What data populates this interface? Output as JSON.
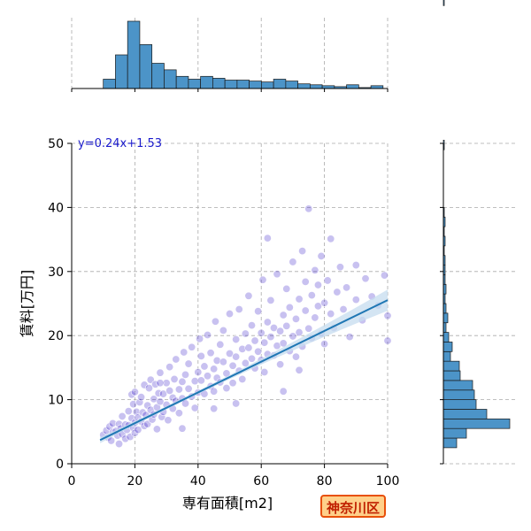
{
  "chart_data": {
    "type": "scatter",
    "xlabel": "専有面積[m2]",
    "ylabel": "賃料[万円]",
    "xlim": [
      0,
      100
    ],
    "ylim": [
      0,
      50
    ],
    "xticks": [
      "0",
      "20",
      "40",
      "60",
      "80",
      "100"
    ],
    "yticks": [
      "0",
      "10",
      "20",
      "30",
      "40",
      "50"
    ],
    "grid": true,
    "regression": {
      "label": "y=0.24x+1.53",
      "slope": 0.24,
      "intercept": 1.53,
      "x_range": [
        9,
        100
      ],
      "line_color": "#1f77b4",
      "band_color": "#c6dcef"
    },
    "point_color": "#3b1fc9",
    "bar_color": "#4c94c8",
    "points": [
      [
        10,
        4.5
      ],
      [
        11,
        5.2
      ],
      [
        11.5,
        4.1
      ],
      [
        12,
        5.8
      ],
      [
        12.5,
        3.6
      ],
      [
        13,
        4.9
      ],
      [
        13,
        6.3
      ],
      [
        14,
        5.1
      ],
      [
        14.5,
        4.4
      ],
      [
        15,
        6.2
      ],
      [
        15,
        3.1
      ],
      [
        15.5,
        5.5
      ],
      [
        16,
        7.4
      ],
      [
        16,
        4.6
      ],
      [
        17,
        6.1
      ],
      [
        17,
        3.9
      ],
      [
        17.5,
        5.3
      ],
      [
        18,
        8.2
      ],
      [
        18,
        6.0
      ],
      [
        18.5,
        4.2
      ],
      [
        19,
        10.8
      ],
      [
        19,
        7.1
      ],
      [
        19.5,
        5.6
      ],
      [
        19.5,
        9.3
      ],
      [
        20,
        6.4
      ],
      [
        20,
        11.2
      ],
      [
        20,
        4.8
      ],
      [
        20.5,
        8.1
      ],
      [
        21,
        7.2
      ],
      [
        21,
        5.3
      ],
      [
        21.5,
        9.6
      ],
      [
        22,
        6.6
      ],
      [
        22,
        10.4
      ],
      [
        22.5,
        8.0
      ],
      [
        23,
        12.3
      ],
      [
        23,
        5.9
      ],
      [
        23.5,
        7.6
      ],
      [
        24,
        9.1
      ],
      [
        24,
        6.2
      ],
      [
        24.5,
        11.8
      ],
      [
        25,
        8.4
      ],
      [
        25,
        13.1
      ],
      [
        25.5,
        6.9
      ],
      [
        26,
        10.1
      ],
      [
        26,
        7.7
      ],
      [
        26.5,
        12.4
      ],
      [
        27,
        8.8
      ],
      [
        27,
        5.4
      ],
      [
        27.5,
        11.0
      ],
      [
        28,
        9.7
      ],
      [
        28,
        14.2
      ],
      [
        28.5,
        7.3
      ],
      [
        29,
        10.9
      ],
      [
        29,
        8.1
      ],
      [
        30,
        12.6
      ],
      [
        30,
        9.2
      ],
      [
        30.5,
        6.8
      ],
      [
        31,
        11.4
      ],
      [
        31,
        15.1
      ],
      [
        32,
        10.3
      ],
      [
        32,
        8.6
      ],
      [
        32.5,
        13.2
      ],
      [
        33,
        9.8
      ],
      [
        33,
        16.3
      ],
      [
        34,
        11.6
      ],
      [
        34,
        7.9
      ],
      [
        35,
        12.8
      ],
      [
        35,
        10.2
      ],
      [
        35.5,
        17.4
      ],
      [
        36,
        9.4
      ],
      [
        36,
        13.9
      ],
      [
        37,
        11.7
      ],
      [
        37,
        15.6
      ],
      [
        38,
        10.5
      ],
      [
        38,
        18.2
      ],
      [
        39,
        12.9
      ],
      [
        39,
        8.7
      ],
      [
        40,
        14.3
      ],
      [
        40,
        11.1
      ],
      [
        40.5,
        19.5
      ],
      [
        41,
        13.0
      ],
      [
        41,
        16.8
      ],
      [
        42,
        10.9
      ],
      [
        42,
        15.2
      ],
      [
        43,
        13.7
      ],
      [
        43,
        20.1
      ],
      [
        44,
        12.1
      ],
      [
        44,
        17.3
      ],
      [
        45,
        14.8
      ],
      [
        45,
        11.3
      ],
      [
        45.5,
        22.2
      ],
      [
        46,
        16.1
      ],
      [
        46,
        13.4
      ],
      [
        47,
        18.6
      ],
      [
        47,
        12.7
      ],
      [
        48,
        15.9
      ],
      [
        48,
        20.8
      ],
      [
        49,
        14.1
      ],
      [
        49,
        11.8
      ],
      [
        50,
        17.2
      ],
      [
        50,
        23.4
      ],
      [
        51,
        15.3
      ],
      [
        51,
        12.6
      ],
      [
        52,
        19.4
      ],
      [
        52,
        16.7
      ],
      [
        53,
        14.5
      ],
      [
        53,
        24.1
      ],
      [
        54,
        17.9
      ],
      [
        54,
        13.2
      ],
      [
        55,
        20.3
      ],
      [
        55,
        15.7
      ],
      [
        56,
        18.1
      ],
      [
        56,
        26.2
      ],
      [
        57,
        16.4
      ],
      [
        57,
        21.6
      ],
      [
        58,
        14.9
      ],
      [
        58,
        19.2
      ],
      [
        59,
        17.5
      ],
      [
        59,
        23.8
      ],
      [
        60,
        16.2
      ],
      [
        60,
        20.4
      ],
      [
        60.5,
        28.7
      ],
      [
        61,
        18.9
      ],
      [
        61,
        14.3
      ],
      [
        62,
        22.1
      ],
      [
        62,
        17.1
      ],
      [
        63,
        19.8
      ],
      [
        63,
        25.5
      ],
      [
        64,
        16.9
      ],
      [
        64,
        21.2
      ],
      [
        65,
        18.4
      ],
      [
        65,
        29.6
      ],
      [
        66,
        20.7
      ],
      [
        66,
        15.5
      ],
      [
        67,
        23.2
      ],
      [
        67,
        18.8
      ],
      [
        68,
        21.5
      ],
      [
        68,
        27.3
      ],
      [
        69,
        17.6
      ],
      [
        69,
        24.4
      ],
      [
        70,
        19.9
      ],
      [
        70,
        31.5
      ],
      [
        71,
        22.6
      ],
      [
        71,
        16.7
      ],
      [
        72,
        25.7
      ],
      [
        72,
        20.5
      ],
      [
        73,
        18.3
      ],
      [
        73,
        33.2
      ],
      [
        74,
        23.9
      ],
      [
        74,
        28.4
      ],
      [
        75,
        21.1
      ],
      [
        75,
        39.8
      ],
      [
        76,
        26.3
      ],
      [
        76,
        19.6
      ],
      [
        77,
        30.2
      ],
      [
        77,
        22.8
      ],
      [
        78,
        24.6
      ],
      [
        78,
        27.9
      ],
      [
        79,
        20.3
      ],
      [
        79,
        32.4
      ],
      [
        80,
        25.1
      ],
      [
        80,
        18.7
      ],
      [
        81,
        28.6
      ],
      [
        82,
        23.4
      ],
      [
        82,
        35.1
      ],
      [
        83,
        21.2
      ],
      [
        84,
        26.8
      ],
      [
        85,
        30.7
      ],
      [
        86,
        24.1
      ],
      [
        87,
        27.5
      ],
      [
        88,
        19.8
      ],
      [
        90,
        31.0
      ],
      [
        90,
        25.6
      ],
      [
        92,
        22.4
      ],
      [
        93,
        28.9
      ],
      [
        95,
        26.1
      ],
      [
        97,
        24.7
      ],
      [
        99,
        29.4
      ],
      [
        100,
        23.1
      ],
      [
        100,
        19.2
      ],
      [
        62,
        35.2
      ],
      [
        45,
        8.6
      ],
      [
        35,
        5.5
      ],
      [
        28,
        12.6
      ],
      [
        52,
        9.4
      ],
      [
        67,
        11.3
      ],
      [
        72,
        14.6
      ]
    ],
    "top_histogram": {
      "bin_width": 3.85,
      "x_start": 10,
      "counts": [
        10,
        36,
        72,
        47,
        27,
        20,
        13,
        10,
        13,
        11,
        9,
        9,
        8,
        7,
        10,
        8,
        5,
        4,
        3,
        2,
        4,
        1,
        3
      ]
    },
    "right_histogram": {
      "bin_width": 1.5,
      "y_start": 2.5,
      "counts": [
        15,
        26,
        75,
        49,
        37,
        35,
        33,
        19,
        18,
        8,
        10,
        6,
        3,
        5,
        3,
        2,
        3,
        2,
        2,
        2,
        1,
        2,
        1,
        2,
        1,
        0,
        0,
        0,
        0,
        0,
        0,
        1,
        0,
        0,
        0,
        0,
        0,
        0,
        0,
        0,
        0,
        0,
        0,
        0,
        0,
        0,
        1
      ]
    }
  },
  "ward_label": "神奈川区"
}
